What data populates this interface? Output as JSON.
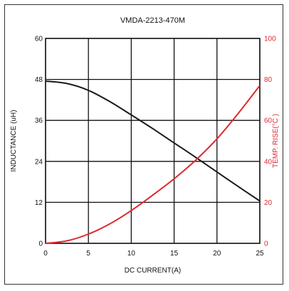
{
  "chart_data": {
    "type": "line",
    "title": "VMDA-2213-470M",
    "xlabel": "DC CURRENT(A)",
    "ylabel_left": "INDUCTANCE (uH)",
    "ylabel_right": "TEMP. RISE(°C )",
    "xlim": [
      0,
      25
    ],
    "ylim_left": [
      0,
      60
    ],
    "ylim_right": [
      0,
      100
    ],
    "x_ticks": [
      "0",
      "5",
      "10",
      "15",
      "20",
      "25"
    ],
    "y_left_ticks": [
      "0",
      "12",
      "24",
      "36",
      "48",
      "60"
    ],
    "y_right_ticks": [
      "0",
      "20",
      "40",
      "60",
      "80",
      "100"
    ],
    "grid": true,
    "colors": {
      "inductance": "#1a1a1a",
      "temp_rise": "#e0282f",
      "grid": "#111111"
    },
    "series": [
      {
        "key": "inductance",
        "axis": "left",
        "x": [
          0,
          2.5,
          5,
          7.5,
          10,
          12.5,
          15,
          17.5,
          20,
          22.5,
          25
        ],
        "y": [
          47.5,
          46.8,
          44.8,
          41.5,
          37.6,
          33.6,
          29.4,
          25.2,
          20.9,
          16.6,
          12.4
        ]
      },
      {
        "key": "temp_rise",
        "axis": "right",
        "x": [
          0,
          2.5,
          5,
          7.5,
          10,
          12.5,
          15,
          17.5,
          20,
          22.5,
          25
        ],
        "y": [
          0,
          1.2,
          4.5,
          9.5,
          16,
          23.5,
          31.5,
          40.5,
          51,
          63.5,
          77
        ]
      }
    ]
  }
}
